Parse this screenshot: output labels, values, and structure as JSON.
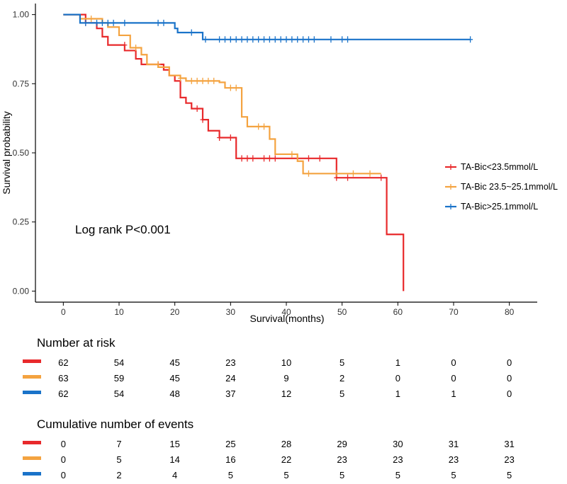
{
  "chart_data": {
    "type": "line",
    "subtype": "kaplan-meier",
    "xlabel": "Survival(months)",
    "ylabel": "Survival probability",
    "xlim": [
      -5,
      85
    ],
    "ylim": [
      -0.04,
      1.04
    ],
    "xticks": [
      0,
      10,
      20,
      30,
      40,
      50,
      60,
      70,
      80
    ],
    "xtick_labels": [
      "0",
      "10",
      "20",
      "30",
      "40",
      "50",
      "60",
      "70",
      "80"
    ],
    "yticks": [
      0,
      0.25,
      0.5,
      0.75,
      1
    ],
    "ytick_labels": [
      "0.00",
      "0.25",
      "0.50",
      "0.75",
      "1.00"
    ],
    "annotation": "Log rank P<0.001",
    "legend_position": "right",
    "series": [
      {
        "name": "TA-Bic<23.5mmol/L",
        "color": "#e8292b",
        "steps": [
          [
            0,
            1
          ],
          [
            4,
            0.97
          ],
          [
            6,
            0.95
          ],
          [
            7,
            0.92
          ],
          [
            8,
            0.89
          ],
          [
            10,
            0.89
          ],
          [
            11,
            0.87
          ],
          [
            13,
            0.84
          ],
          [
            14,
            0.82
          ],
          [
            16,
            0.82
          ],
          [
            18,
            0.8
          ],
          [
            19,
            0.78
          ],
          [
            20,
            0.76
          ],
          [
            21,
            0.7
          ],
          [
            22,
            0.68
          ],
          [
            23,
            0.66
          ],
          [
            25,
            0.62
          ],
          [
            26,
            0.58
          ],
          [
            28,
            0.555
          ],
          [
            31,
            0.48
          ],
          [
            49,
            0.41
          ],
          [
            57,
            0.41
          ],
          [
            58,
            0.205
          ],
          [
            61,
            0.0
          ]
        ],
        "censors": [
          [
            4,
            0.97
          ],
          [
            11,
            0.89
          ],
          [
            17,
            0.82
          ],
          [
            24,
            0.66
          ],
          [
            25,
            0.62
          ],
          [
            28,
            0.555
          ],
          [
            30,
            0.555
          ],
          [
            32,
            0.48
          ],
          [
            33,
            0.48
          ],
          [
            34,
            0.48
          ],
          [
            36,
            0.48
          ],
          [
            37,
            0.48
          ],
          [
            38,
            0.48
          ],
          [
            44,
            0.48
          ],
          [
            46,
            0.48
          ],
          [
            49,
            0.41
          ],
          [
            51,
            0.41
          ],
          [
            57,
            0.41
          ]
        ]
      },
      {
        "name": "TA-Bic 23.5~25.1mmol/L",
        "color": "#f4a340",
        "steps": [
          [
            0,
            1
          ],
          [
            3,
            0.985
          ],
          [
            7,
            0.97
          ],
          [
            8,
            0.955
          ],
          [
            10,
            0.925
          ],
          [
            12,
            0.88
          ],
          [
            14,
            0.855
          ],
          [
            15,
            0.82
          ],
          [
            17,
            0.81
          ],
          [
            19,
            0.78
          ],
          [
            21,
            0.77
          ],
          [
            22,
            0.76
          ],
          [
            28,
            0.755
          ],
          [
            29,
            0.735
          ],
          [
            32,
            0.73
          ],
          [
            32,
            0.63
          ],
          [
            33,
            0.595
          ],
          [
            37,
            0.55
          ],
          [
            38,
            0.495
          ],
          [
            42,
            0.47
          ],
          [
            43,
            0.425
          ],
          [
            57,
            0.425
          ]
        ],
        "censors": [
          [
            5,
            0.985
          ],
          [
            13,
            0.88
          ],
          [
            17,
            0.82
          ],
          [
            21,
            0.77
          ],
          [
            23,
            0.76
          ],
          [
            24,
            0.76
          ],
          [
            25,
            0.76
          ],
          [
            26,
            0.76
          ],
          [
            27,
            0.76
          ],
          [
            30,
            0.735
          ],
          [
            31,
            0.735
          ],
          [
            35,
            0.595
          ],
          [
            36,
            0.595
          ],
          [
            41,
            0.495
          ],
          [
            44,
            0.425
          ],
          [
            49,
            0.425
          ],
          [
            52,
            0.425
          ],
          [
            55,
            0.425
          ]
        ]
      },
      {
        "name": "TA-Bic>25.1mmol/L",
        "color": "#1a73c9",
        "steps": [
          [
            0,
            1
          ],
          [
            3,
            1
          ],
          [
            3,
            0.97
          ],
          [
            19,
            0.97
          ],
          [
            20,
            0.95
          ],
          [
            20.5,
            0.935
          ],
          [
            25,
            0.91
          ],
          [
            73,
            0.91
          ]
        ],
        "censors": [
          [
            4,
            0.97
          ],
          [
            6,
            0.97
          ],
          [
            7,
            0.97
          ],
          [
            8,
            0.97
          ],
          [
            9,
            0.97
          ],
          [
            11,
            0.97
          ],
          [
            17,
            0.97
          ],
          [
            18,
            0.97
          ],
          [
            23,
            0.935
          ],
          [
            25.5,
            0.91
          ],
          [
            28,
            0.91
          ],
          [
            29,
            0.91
          ],
          [
            30,
            0.91
          ],
          [
            31,
            0.91
          ],
          [
            32,
            0.91
          ],
          [
            33,
            0.91
          ],
          [
            34,
            0.91
          ],
          [
            35,
            0.91
          ],
          [
            36,
            0.91
          ],
          [
            37,
            0.91
          ],
          [
            38,
            0.91
          ],
          [
            39,
            0.91
          ],
          [
            40,
            0.91
          ],
          [
            41,
            0.91
          ],
          [
            42,
            0.91
          ],
          [
            43,
            0.91
          ],
          [
            44,
            0.91
          ],
          [
            45,
            0.91
          ],
          [
            48,
            0.91
          ],
          [
            50,
            0.91
          ],
          [
            51,
            0.91
          ],
          [
            73,
            0.91
          ]
        ]
      }
    ]
  },
  "risk_table": {
    "title": "Number at risk",
    "rows": [
      {
        "color": "#e8292b",
        "values": [
          "62",
          "54",
          "45",
          "23",
          "10",
          "5",
          "1",
          "0",
          "0"
        ]
      },
      {
        "color": "#f4a340",
        "values": [
          "63",
          "59",
          "45",
          "24",
          "9",
          "2",
          "0",
          "0",
          "0"
        ]
      },
      {
        "color": "#1a73c9",
        "values": [
          "62",
          "54",
          "48",
          "37",
          "12",
          "5",
          "1",
          "1",
          "0"
        ]
      }
    ]
  },
  "events_table": {
    "title": "Cumulative number of events",
    "rows": [
      {
        "color": "#e8292b",
        "values": [
          "0",
          "7",
          "15",
          "25",
          "28",
          "29",
          "30",
          "31",
          "31"
        ]
      },
      {
        "color": "#f4a340",
        "values": [
          "0",
          "5",
          "14",
          "16",
          "22",
          "23",
          "23",
          "23",
          "23"
        ]
      },
      {
        "color": "#1a73c9",
        "values": [
          "0",
          "2",
          "4",
          "5",
          "5",
          "5",
          "5",
          "5",
          "5"
        ]
      }
    ]
  }
}
